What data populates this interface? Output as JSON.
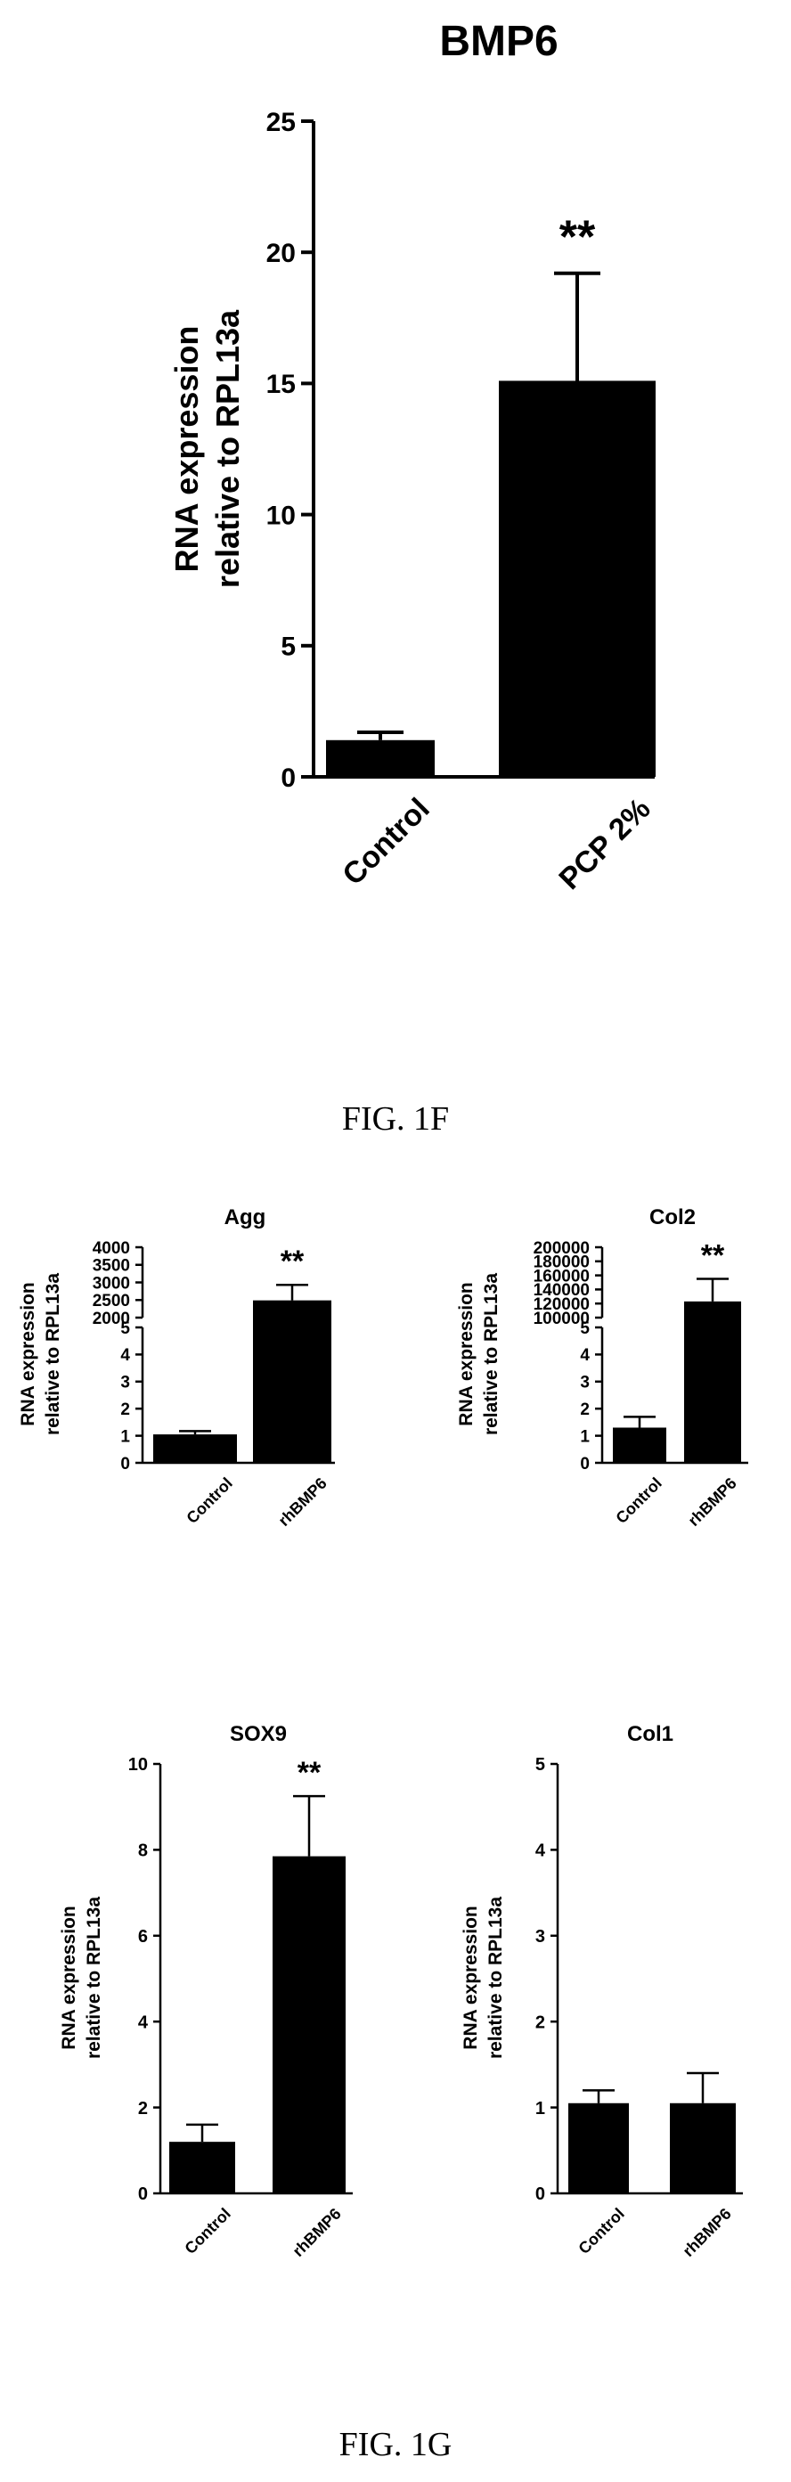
{
  "figures": {
    "top_caption": "FIG. 1F",
    "bottom_caption": "FIG. 1G"
  },
  "chart_data": [
    {
      "id": "bmp6",
      "type": "bar",
      "title": "BMP6",
      "ylabel_lines": [
        "RNA expression",
        "relative to RPL13a"
      ],
      "categories": [
        "Control",
        "PCP 2%"
      ],
      "values": [
        1.4,
        15.1
      ],
      "errors": [
        0.3,
        4.1
      ],
      "significance": [
        "",
        "**"
      ],
      "ylim": [
        0,
        25
      ],
      "yticks": [
        0,
        5,
        10,
        15,
        20,
        25
      ],
      "bar_color": "#000000"
    },
    {
      "id": "agg",
      "type": "bar",
      "title": "Agg",
      "ylabel_lines": [
        "RNA expression",
        "relative to RPL13a"
      ],
      "categories": [
        "Control",
        "rhBMP6"
      ],
      "values": [
        1.05,
        2490
      ],
      "errors": [
        0.12,
        440
      ],
      "significance": [
        "",
        "**"
      ],
      "broken_axis": {
        "lower_ticks": [
          0,
          1,
          2,
          3,
          4,
          5
        ],
        "upper_ticks": [
          2000,
          2500,
          3000,
          3500,
          4000
        ]
      },
      "bar_color": "#000000"
    },
    {
      "id": "col2",
      "type": "bar",
      "title": "Col2",
      "ylabel_lines": [
        "RNA expression",
        "relative to RPL13a"
      ],
      "categories": [
        "Control",
        "rhBMP6"
      ],
      "values": [
        1.3,
        123000
      ],
      "errors": [
        0.4,
        32000
      ],
      "significance": [
        "",
        "**"
      ],
      "broken_axis": {
        "lower_ticks": [
          0,
          1,
          2,
          3,
          4,
          5
        ],
        "upper_ticks": [
          100000,
          120000,
          140000,
          160000,
          180000,
          200000
        ]
      },
      "bar_color": "#000000"
    },
    {
      "id": "sox9",
      "type": "bar",
      "title": "SOX9",
      "ylabel_lines": [
        "RNA expression",
        "relative to RPL13a"
      ],
      "categories": [
        "Control",
        "rhBMP6"
      ],
      "values": [
        1.2,
        7.85
      ],
      "errors": [
        0.4,
        1.4
      ],
      "significance": [
        "",
        "**"
      ],
      "ylim": [
        0,
        10
      ],
      "yticks": [
        0,
        2,
        4,
        6,
        8,
        10
      ],
      "bar_color": "#000000"
    },
    {
      "id": "col1",
      "type": "bar",
      "title": "Col1",
      "ylabel_lines": [
        "RNA expression",
        "relative to RPL13a"
      ],
      "categories": [
        "Control",
        "rhBMP6"
      ],
      "values": [
        1.05,
        1.05
      ],
      "errors": [
        0.15,
        0.35
      ],
      "significance": [
        "",
        ""
      ],
      "ylim": [
        0,
        5
      ],
      "yticks": [
        0,
        1,
        2,
        3,
        4,
        5
      ],
      "bar_color": "#000000"
    }
  ]
}
